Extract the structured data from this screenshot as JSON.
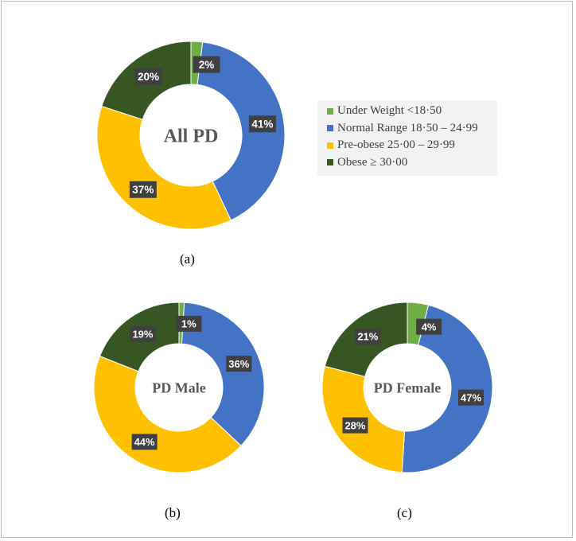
{
  "colors": {
    "underweight": "#70ad47",
    "normal": "#4472c4",
    "preobese": "#ffc000",
    "obese": "#375623",
    "label_bg": "#404040",
    "label_text": "#ffffff",
    "center_text": "#595959",
    "border": "#9dc3e6"
  },
  "legend": {
    "items": [
      {
        "label": "Under Weight <18·50",
        "color": "#70ad47"
      },
      {
        "label": "Normal Range 18·50 – 24·99",
        "color": "#4472c4"
      },
      {
        "label": "Pre-obese 25·00 – 29·99",
        "color": "#ffc000"
      },
      {
        "label": "Obese ≥ 30·00",
        "color": "#375623"
      }
    ]
  },
  "captions": {
    "a": "(a)",
    "b": "(b)",
    "c": "(c)"
  },
  "chart_data": [
    {
      "type": "pie",
      "title": "All PD",
      "categories": [
        "Under Weight <18·50",
        "Normal Range 18·50 – 24·99",
        "Pre-obese 25·00 – 29·99",
        "Obese ≥ 30·00"
      ],
      "values": [
        2,
        41,
        37,
        20
      ],
      "labels": [
        "2%",
        "41%",
        "37%",
        "20%"
      ],
      "unit": "%",
      "caption": "(a)"
    },
    {
      "type": "pie",
      "title": "PD Male",
      "categories": [
        "Under Weight <18·50",
        "Normal Range 18·50 – 24·99",
        "Pre-obese 25·00 – 29·99",
        "Obese ≥ 30·00"
      ],
      "values": [
        1,
        36,
        44,
        19
      ],
      "labels": [
        "1%",
        "36%",
        "44%",
        "19%"
      ],
      "unit": "%",
      "caption": "(b)"
    },
    {
      "type": "pie",
      "title": "PD Female",
      "categories": [
        "Under Weight <18·50",
        "Normal Range 18·50 – 24·99",
        "Pre-obese 25·00 – 29·99",
        "Obese ≥ 30·00"
      ],
      "values": [
        4,
        47,
        28,
        21
      ],
      "labels": [
        "4%",
        "47%",
        "28%",
        "21%"
      ],
      "unit": "%",
      "caption": "(c)"
    }
  ]
}
